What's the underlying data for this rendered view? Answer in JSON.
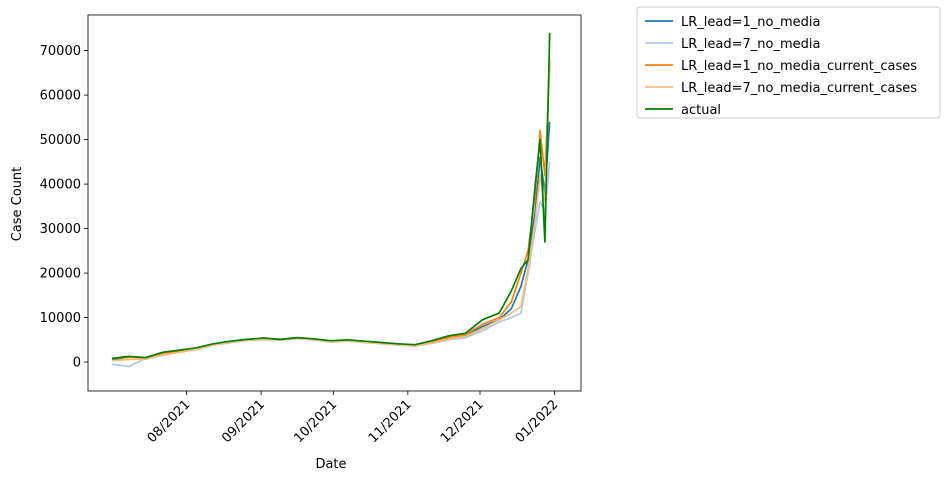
{
  "chart_data": {
    "type": "line",
    "xlabel": "Date",
    "ylabel": "Case Count",
    "x_ticks": [
      "08/2021",
      "09/2021",
      "10/2021",
      "11/2021",
      "12/2021",
      "01/2022"
    ],
    "y_ticks": [
      "0",
      "10000",
      "20000",
      "30000",
      "40000",
      "50000",
      "60000",
      "70000"
    ],
    "xlim": [
      "2021-06-21",
      "2022-01-12"
    ],
    "ylim": [
      -6500,
      78000
    ],
    "legend_position": "outside-upper-right",
    "x": [
      "2021-07-01",
      "2021-07-08",
      "2021-07-15",
      "2021-07-22",
      "2021-07-29",
      "2021-08-05",
      "2021-08-12",
      "2021-08-19",
      "2021-08-26",
      "2021-09-02",
      "2021-09-09",
      "2021-09-16",
      "2021-09-23",
      "2021-09-30",
      "2021-10-07",
      "2021-10-14",
      "2021-10-21",
      "2021-10-28",
      "2021-11-04",
      "2021-11-11",
      "2021-11-18",
      "2021-11-25",
      "2021-12-02",
      "2021-12-09",
      "2021-12-14",
      "2021-12-18",
      "2021-12-21",
      "2021-12-24",
      "2021-12-26",
      "2021-12-28",
      "2021-12-30"
    ],
    "series": [
      {
        "name": "LR_lead=1_no_media",
        "color": "#1f77b4",
        "values": [
          500,
          1200,
          900,
          2000,
          2500,
          3000,
          4000,
          4500,
          5000,
          5200,
          5000,
          5300,
          5100,
          4600,
          4800,
          4500,
          4200,
          3900,
          3700,
          4500,
          5500,
          6000,
          8000,
          9500,
          12000,
          17000,
          23000,
          34000,
          46000,
          38000,
          54000
        ]
      },
      {
        "name": "LR_lead=7_no_media",
        "color": "#aec7e8",
        "values": [
          -500,
          -1000,
          800,
          1500,
          2200,
          2800,
          3800,
          4300,
          4900,
          5000,
          4900,
          5200,
          5000,
          4500,
          4700,
          4400,
          4100,
          3800,
          3600,
          4200,
          5000,
          5500,
          7000,
          9000,
          10000,
          11000,
          20000,
          30000,
          36000,
          34000,
          45000
        ]
      },
      {
        "name": "LR_lead=1_no_media_current_cases",
        "color": "#ff7f0e",
        "values": [
          800,
          1100,
          1000,
          2000,
          2500,
          3100,
          4000,
          4600,
          5000,
          5300,
          5000,
          5400,
          5100,
          4700,
          4900,
          4600,
          4300,
          4000,
          3800,
          4600,
          5600,
          6200,
          8500,
          10000,
          13500,
          20000,
          25000,
          38000,
          52000,
          42000,
          67000
        ]
      },
      {
        "name": "LR_lead=7_no_media_current_cases",
        "color": "#ffbb78",
        "values": [
          300,
          600,
          700,
          1600,
          2200,
          2900,
          3800,
          4500,
          4900,
          5100,
          5000,
          5300,
          5000,
          4600,
          4800,
          4400,
          4200,
          3900,
          3600,
          4300,
          5200,
          5800,
          7500,
          9500,
          11000,
          12500,
          21000,
          32000,
          42000,
          36000,
          68000
        ]
      },
      {
        "name": "actual",
        "color": "#008000",
        "values": [
          800,
          1300,
          1000,
          2200,
          2700,
          3200,
          4100,
          4700,
          5100,
          5400,
          5100,
          5500,
          5200,
          4800,
          5000,
          4700,
          4400,
          4100,
          3900,
          4800,
          5900,
          6500,
          9500,
          11000,
          16000,
          21000,
          23000,
          40000,
          50000,
          27000,
          74000
        ]
      }
    ]
  }
}
